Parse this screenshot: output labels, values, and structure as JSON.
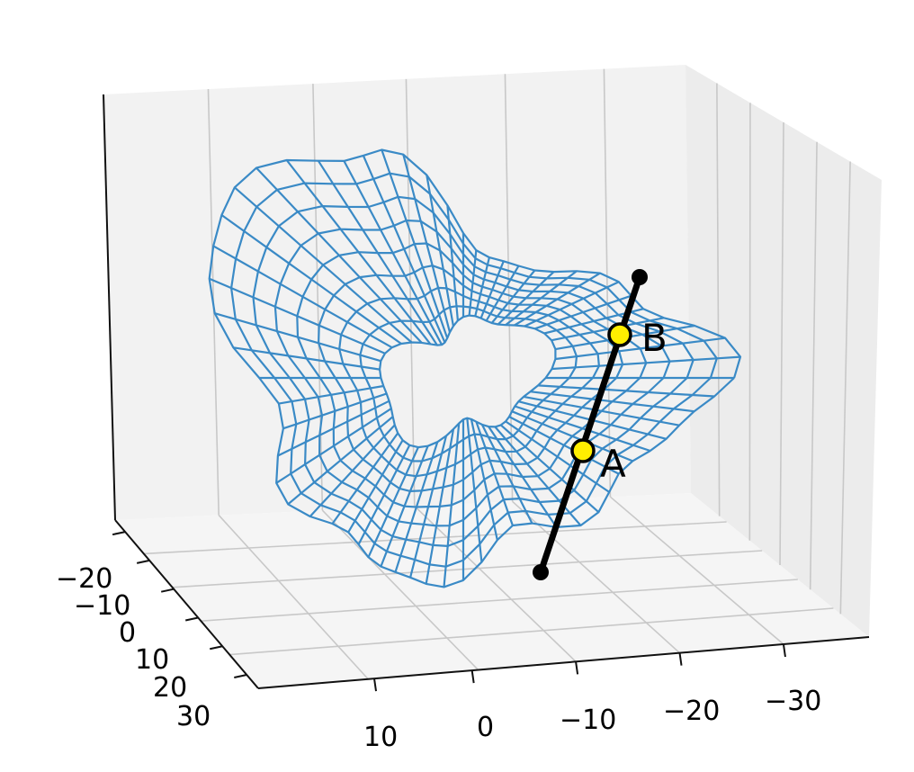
{
  "chart": {
    "type": "3d-wireframe",
    "mesh_color": "#3a8ac6",
    "pane_color": "#f2f2f2",
    "grid_color": "#c8c8c8",
    "axes": {
      "left_axis_ticks": [
        "−20",
        "−10",
        "0",
        "10",
        "20",
        "30"
      ],
      "bottom_axis_ticks": [
        "10",
        "0",
        "−10",
        "−20",
        "−30"
      ]
    },
    "segment": {
      "line_color": "#000000",
      "point_fill": "#ffee00",
      "points": [
        {
          "label": "A"
        },
        {
          "label": "B"
        }
      ]
    }
  }
}
